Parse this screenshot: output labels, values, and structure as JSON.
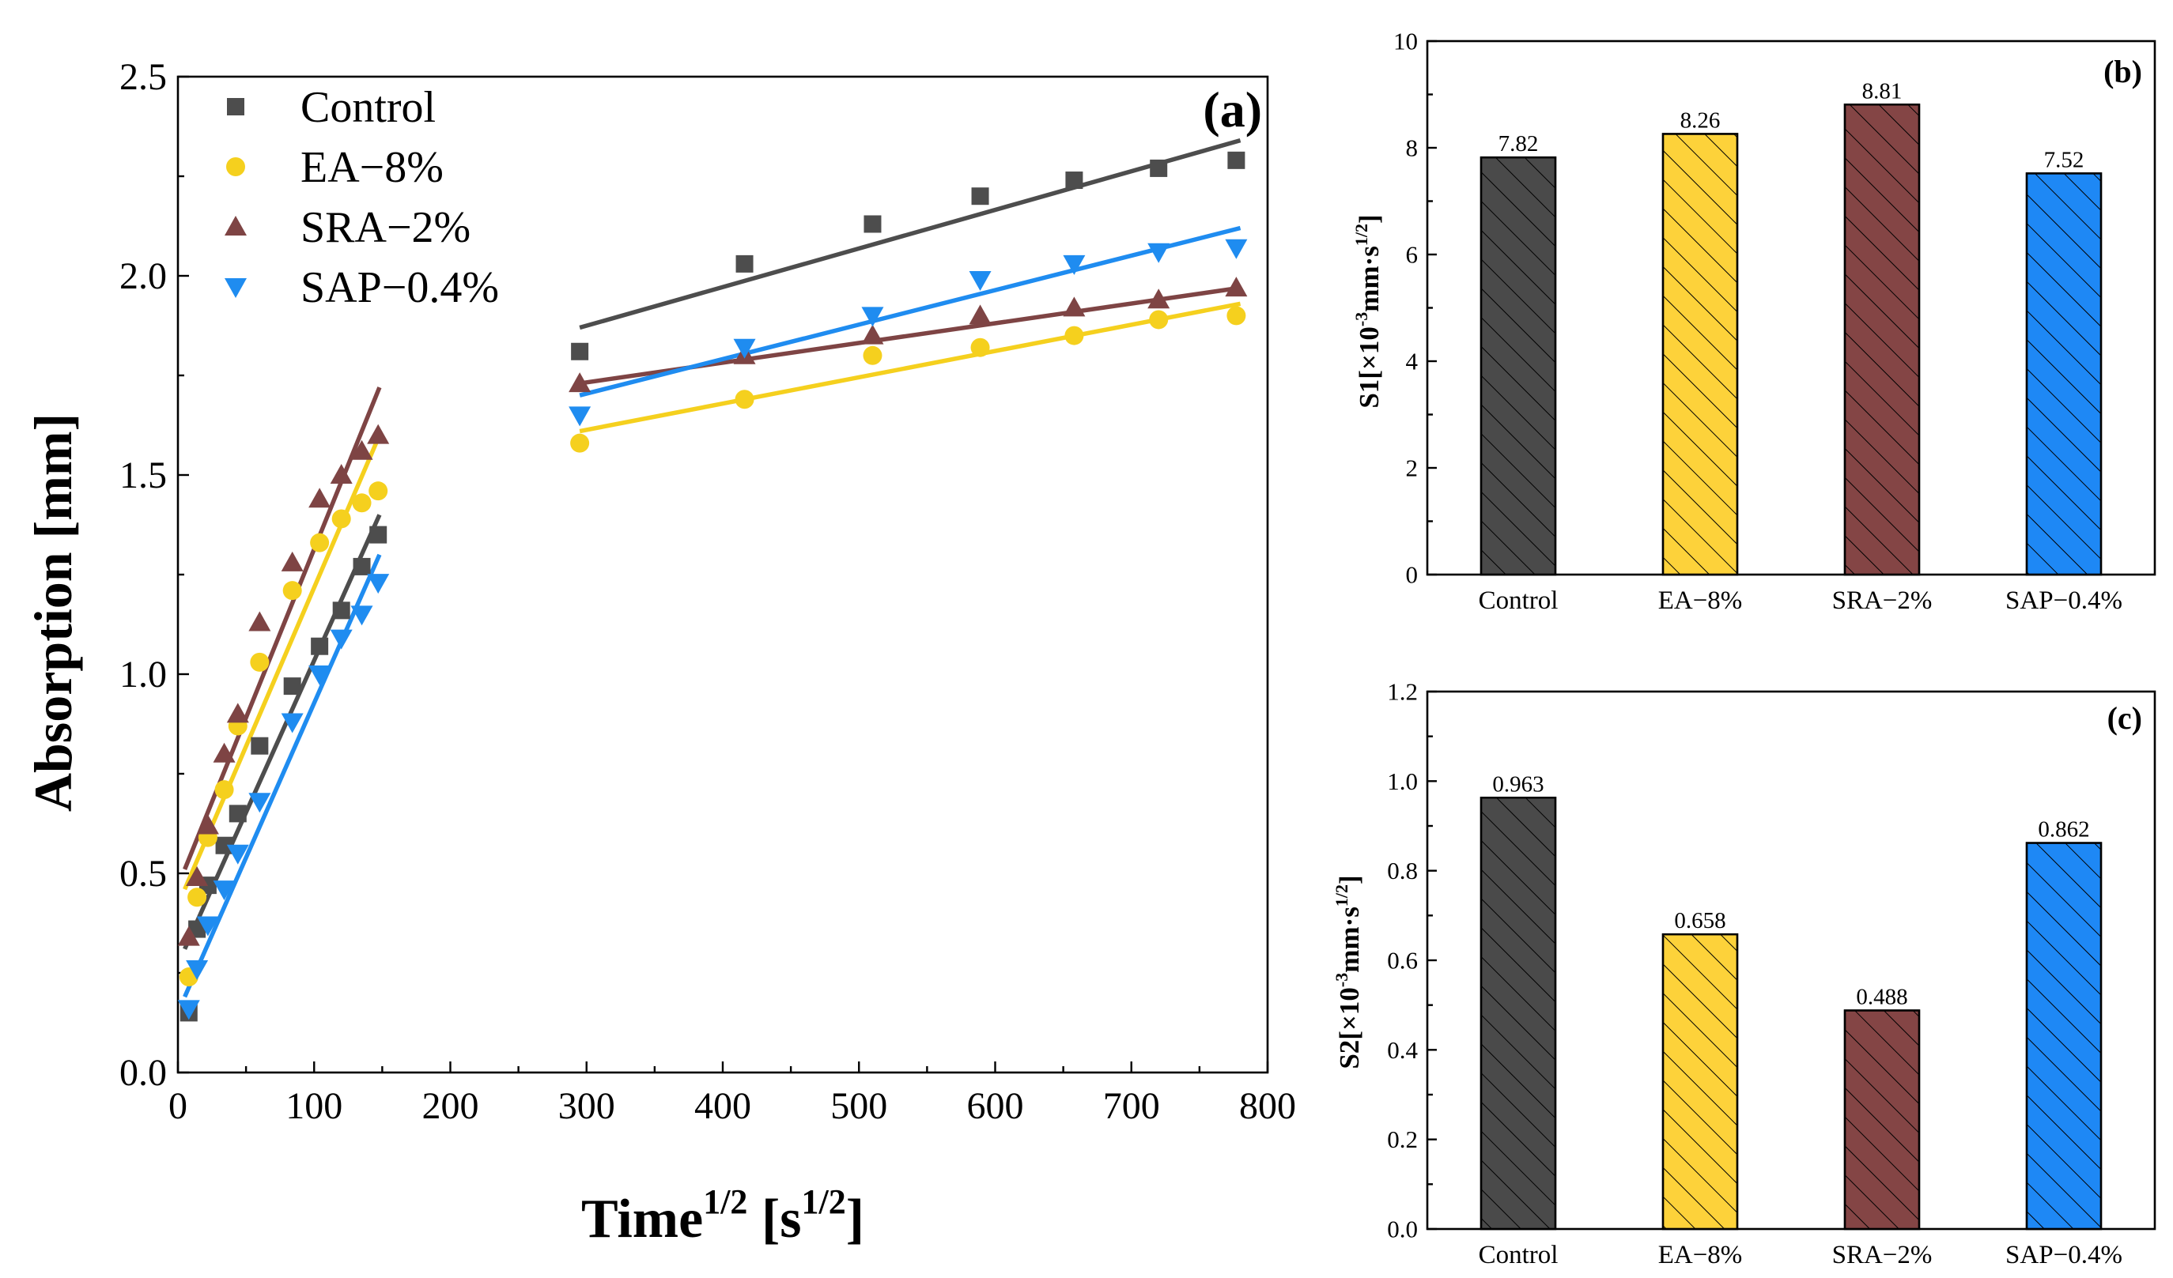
{
  "chart_data": [
    {
      "id": "a",
      "type": "scatter",
      "panel_label": "(a)",
      "xlabel": "Time",
      "xlabel_sup": "1/2",
      "xlabel_unit_open": " [s",
      "xlabel_unit_sup": "1/2",
      "xlabel_unit_close": "]",
      "ylabel": "Absorption [mm]",
      "xlim": [
        0,
        800
      ],
      "ylim": [
        0,
        2.5
      ],
      "xticks": [
        "0",
        "100",
        "200",
        "300",
        "400",
        "500",
        "600",
        "700",
        "800"
      ],
      "yticks": [
        "0.0",
        "0.5",
        "1.0",
        "1.5",
        "2.0",
        "2.5"
      ],
      "legend_position": "top-left",
      "series": [
        {
          "name": "Control",
          "marker": "square",
          "color": "#4d4d4d",
          "x": [
            8,
            14,
            22,
            34,
            44,
            60,
            84,
            104,
            120,
            135,
            147,
            295,
            416,
            510,
            589,
            658,
            720,
            777
          ],
          "y": [
            0.15,
            0.36,
            0.47,
            0.57,
            0.65,
            0.82,
            0.97,
            1.07,
            1.16,
            1.27,
            1.35,
            1.81,
            2.03,
            2.13,
            2.2,
            2.24,
            2.27,
            2.29
          ],
          "fits": [
            {
              "x": [
                5,
                148
              ],
              "y": [
                0.31,
                1.4
              ]
            },
            {
              "x": [
                295,
                780
              ],
              "y": [
                1.87,
                2.34
              ]
            }
          ]
        },
        {
          "name": "EA−8%",
          "marker": "circle",
          "color": "#f5d01e",
          "x": [
            8,
            14,
            22,
            34,
            44,
            60,
            84,
            104,
            120,
            135,
            147,
            295,
            416,
            510,
            589,
            658,
            720,
            777
          ],
          "y": [
            0.24,
            0.44,
            0.59,
            0.71,
            0.87,
            1.03,
            1.21,
            1.33,
            1.39,
            1.43,
            1.46,
            1.58,
            1.69,
            1.8,
            1.82,
            1.85,
            1.89,
            1.9
          ],
          "fits": [
            {
              "x": [
                5,
                148
              ],
              "y": [
                0.46,
                1.6
              ]
            },
            {
              "x": [
                295,
                780
              ],
              "y": [
                1.61,
                1.93
              ]
            }
          ]
        },
        {
          "name": "SRA−2%",
          "marker": "triangle-up",
          "color": "#7e4444",
          "x": [
            8,
            14,
            22,
            34,
            44,
            60,
            84,
            104,
            120,
            135,
            147,
            295,
            416,
            510,
            589,
            658,
            720,
            777
          ],
          "y": [
            0.34,
            0.49,
            0.62,
            0.8,
            0.9,
            1.13,
            1.28,
            1.44,
            1.5,
            1.56,
            1.6,
            1.73,
            1.8,
            1.85,
            1.9,
            1.92,
            1.94,
            1.97
          ],
          "fits": [
            {
              "x": [
                5,
                148
              ],
              "y": [
                0.51,
                1.72
              ]
            },
            {
              "x": [
                295,
                780
              ],
              "y": [
                1.73,
                1.97
              ]
            }
          ]
        },
        {
          "name": "SAP−0.4%",
          "marker": "triangle-down",
          "color": "#1f8cf0",
          "x": [
            8,
            14,
            22,
            34,
            44,
            60,
            84,
            104,
            120,
            135,
            147,
            295,
            416,
            510,
            589,
            658,
            720,
            777
          ],
          "y": [
            0.16,
            0.26,
            0.37,
            0.46,
            0.55,
            0.68,
            0.88,
            1.0,
            1.09,
            1.15,
            1.23,
            1.65,
            1.82,
            1.9,
            1.99,
            2.03,
            2.06,
            2.07
          ],
          "fits": [
            {
              "x": [
                5,
                148
              ],
              "y": [
                0.19,
                1.3
              ]
            },
            {
              "x": [
                295,
                780
              ],
              "y": [
                1.7,
                2.12
              ]
            }
          ]
        }
      ]
    },
    {
      "id": "b",
      "type": "bar",
      "panel_label": "(b)",
      "ylabel_pre": "S1[×10",
      "ylabel_sup1": "-3",
      "ylabel_mid": "mm·s",
      "ylabel_sup2": "1/2",
      "ylabel_post": "]",
      "categories": [
        "Control",
        "EA−8%",
        "SRA−2%",
        "SAP−0.4%"
      ],
      "values": [
        7.82,
        8.26,
        8.81,
        7.52
      ],
      "value_labels": [
        "7.82",
        "8.26",
        "8.81",
        "7.52"
      ],
      "colors": [
        "#4a4a4a",
        "#fdd23a",
        "#844545",
        "#1e88f5"
      ],
      "ylim": [
        0,
        10
      ],
      "yticks": [
        "0",
        "2",
        "4",
        "6",
        "8",
        "10"
      ],
      "pattern": "diagonal-hatch"
    },
    {
      "id": "c",
      "type": "bar",
      "panel_label": "(c)",
      "ylabel_pre": "S2[×10",
      "ylabel_sup1": "-3",
      "ylabel_mid": "mm·s",
      "ylabel_sup2": "1/2",
      "ylabel_post": "]",
      "categories": [
        "Control",
        "EA−8%",
        "SRA−2%",
        "SAP−0.4%"
      ],
      "values": [
        0.963,
        0.658,
        0.488,
        0.862
      ],
      "value_labels": [
        "0.963",
        "0.658",
        "0.488",
        "0.862"
      ],
      "colors": [
        "#4a4a4a",
        "#fdd23a",
        "#844545",
        "#1e88f5"
      ],
      "ylim": [
        0,
        1.2
      ],
      "yticks": [
        "0.0",
        "0.2",
        "0.4",
        "0.6",
        "0.8",
        "1.0",
        "1.2"
      ],
      "pattern": "diagonal-hatch"
    }
  ]
}
